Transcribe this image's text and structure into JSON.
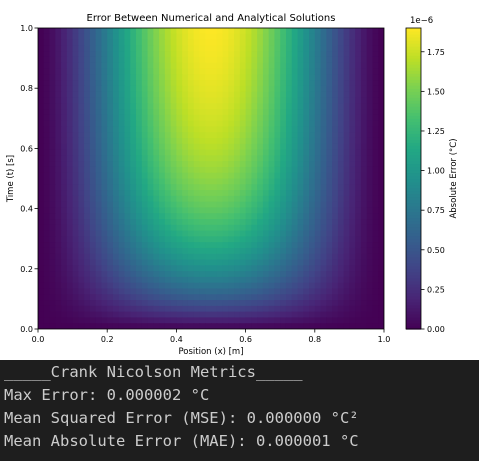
{
  "chart_data": {
    "type": "heatmap",
    "title": "Error Between Numerical and Analytical Solutions",
    "xlabel": "Position (x) [m]",
    "ylabel": "Time (t) [s]",
    "xlim": [
      0.0,
      1.0
    ],
    "ylim": [
      0.0,
      1.0
    ],
    "x_ticks": [
      "0.0",
      "0.2",
      "0.4",
      "0.6",
      "0.8",
      "1.0"
    ],
    "y_ticks": [
      "0.0",
      "0.2",
      "0.4",
      "0.6",
      "0.8",
      "1.0"
    ],
    "colormap": "viridis",
    "colorbar": {
      "label": "Absolute Error (°C)",
      "offset_text": "1e−6",
      "min": 0.0,
      "max": 1.9,
      "ticks": [
        "0.00",
        "0.25",
        "0.50",
        "0.75",
        "1.00",
        "1.25",
        "1.50",
        "1.75"
      ],
      "tick_values": [
        0.0,
        0.25,
        0.5,
        0.75,
        1.0,
        1.25,
        1.5,
        1.75
      ]
    },
    "peak": {
      "x": 0.5,
      "t": 1.0,
      "value": 1.9
    }
  },
  "terminal": {
    "lines": [
      "_____Crank Nicolson Metrics_____",
      "Max Error: 0.000002 °C",
      "Mean Squared Error (MSE): 0.000000 °C²",
      "Mean Absolute Error (MAE): 0.000001 °C"
    ]
  }
}
